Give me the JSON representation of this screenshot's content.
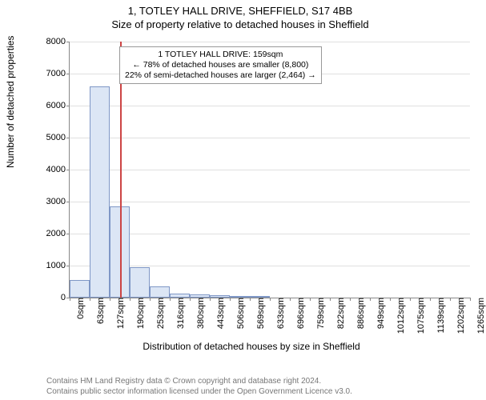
{
  "title": {
    "line1": "1, TOTLEY HALL DRIVE, SHEFFIELD, S17 4BB",
    "line2": "Size of property relative to detached houses in Sheffield"
  },
  "chart": {
    "type": "histogram",
    "ylabel": "Number of detached properties",
    "xlabel": "Distribution of detached houses by size in Sheffield",
    "ylim": [
      0,
      8000
    ],
    "yticks": [
      0,
      1000,
      2000,
      3000,
      4000,
      5000,
      6000,
      7000,
      8000
    ],
    "xtick_labels": [
      "0sqm",
      "63sqm",
      "127sqm",
      "190sqm",
      "253sqm",
      "316sqm",
      "380sqm",
      "443sqm",
      "506sqm",
      "569sqm",
      "633sqm",
      "696sqm",
      "759sqm",
      "822sqm",
      "886sqm",
      "949sqm",
      "1012sqm",
      "1075sqm",
      "1139sqm",
      "1202sqm",
      "1265sqm"
    ],
    "bars": [
      550,
      6600,
      2850,
      950,
      350,
      120,
      110,
      70,
      50,
      40,
      0,
      0,
      0,
      0,
      0,
      0,
      0,
      0,
      0,
      0
    ],
    "bar_fill": "#dce6f5",
    "bar_stroke": "#7f97c6",
    "grid_color": "#e0e0e0",
    "axis_color": "#888888",
    "background_color": "#ffffff",
    "marker": {
      "value_sqm": 159,
      "x_max_sqm": 1265,
      "color": "#cc4444"
    },
    "annotation": {
      "line1": "1 TOTLEY HALL DRIVE: 159sqm",
      "line2": "← 78% of detached houses are smaller (8,800)",
      "line3": "22% of semi-detached houses are larger (2,464) →"
    }
  },
  "copyright": {
    "line1": "Contains HM Land Registry data © Crown copyright and database right 2024.",
    "line2": "Contains public sector information licensed under the Open Government Licence v3.0."
  }
}
